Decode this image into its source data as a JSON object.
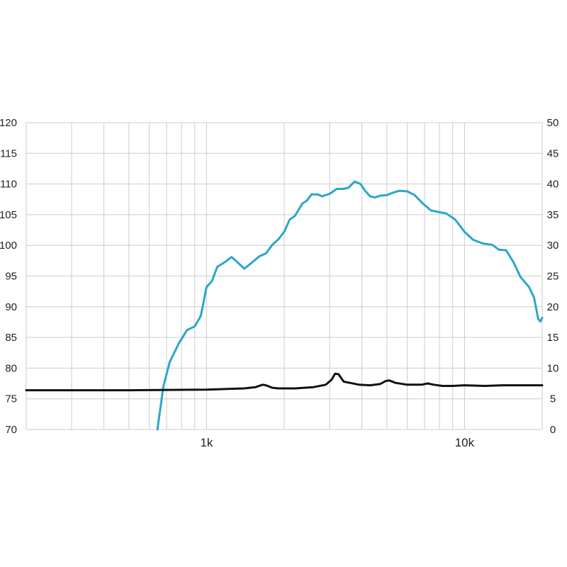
{
  "chart_data": {
    "type": "line",
    "x_scale": "log",
    "x_range": [
      200,
      20000
    ],
    "x_tick_labels": [
      {
        "x": 1000,
        "label": "1k"
      },
      {
        "x": 10000,
        "label": "10k"
      }
    ],
    "x_gridlines": [
      300,
      400,
      500,
      600,
      700,
      800,
      900,
      1000,
      2000,
      3000,
      4000,
      5000,
      6000,
      7000,
      8000,
      9000,
      10000
    ],
    "y_left": {
      "range": [
        70,
        120
      ],
      "ticks": [
        70,
        75,
        80,
        85,
        90,
        95,
        100,
        105,
        110,
        115,
        120
      ]
    },
    "y_right": {
      "range": [
        0,
        50
      ],
      "ticks": [
        0,
        5,
        10,
        15,
        20,
        25,
        30,
        35,
        40,
        45,
        50
      ]
    },
    "grid": true,
    "series": [
      {
        "axis": "left",
        "color": "#2aa7c9",
        "points": [
          [
            645,
            70
          ],
          [
            680,
            77
          ],
          [
            720,
            81
          ],
          [
            780,
            84
          ],
          [
            840,
            86.2
          ],
          [
            900,
            86.8
          ],
          [
            950,
            88.5
          ],
          [
            1000,
            93.2
          ],
          [
            1050,
            94.2
          ],
          [
            1100,
            96.5
          ],
          [
            1180,
            97.3
          ],
          [
            1250,
            98.1
          ],
          [
            1300,
            97.5
          ],
          [
            1400,
            96.2
          ],
          [
            1500,
            97.2
          ],
          [
            1600,
            98.2
          ],
          [
            1700,
            98.7
          ],
          [
            1800,
            100.1
          ],
          [
            1900,
            101.0
          ],
          [
            2000,
            102.2
          ],
          [
            2100,
            104.2
          ],
          [
            2200,
            104.8
          ],
          [
            2350,
            106.8
          ],
          [
            2450,
            107.3
          ],
          [
            2550,
            108.3
          ],
          [
            2700,
            108.3
          ],
          [
            2800,
            108.0
          ],
          [
            3000,
            108.4
          ],
          [
            3200,
            109.2
          ],
          [
            3400,
            109.2
          ],
          [
            3550,
            109.4
          ],
          [
            3750,
            110.4
          ],
          [
            3950,
            110.0
          ],
          [
            4100,
            109.0
          ],
          [
            4300,
            108.0
          ],
          [
            4500,
            107.8
          ],
          [
            4700,
            108.1
          ],
          [
            5000,
            108.2
          ],
          [
            5300,
            108.6
          ],
          [
            5600,
            108.9
          ],
          [
            6000,
            108.8
          ],
          [
            6400,
            108.2
          ],
          [
            6900,
            106.8
          ],
          [
            7400,
            105.7
          ],
          [
            8000,
            105.4
          ],
          [
            8500,
            105.2
          ],
          [
            9200,
            104.2
          ],
          [
            10000,
            102.2
          ],
          [
            10800,
            100.9
          ],
          [
            11800,
            100.3
          ],
          [
            12800,
            100.1
          ],
          [
            13600,
            99.3
          ],
          [
            14500,
            99.2
          ],
          [
            15500,
            97.2
          ],
          [
            16500,
            94.8
          ],
          [
            17800,
            93.2
          ],
          [
            18600,
            91.5
          ],
          [
            19300,
            88.0
          ],
          [
            19700,
            87.6
          ],
          [
            20000,
            88.2
          ]
        ]
      },
      {
        "axis": "right",
        "color": "#111111",
        "points": [
          [
            200,
            6.4
          ],
          [
            500,
            6.4
          ],
          [
            1000,
            6.5
          ],
          [
            1400,
            6.7
          ],
          [
            1550,
            6.9
          ],
          [
            1650,
            7.3
          ],
          [
            1700,
            7.2
          ],
          [
            1800,
            6.8
          ],
          [
            1900,
            6.7
          ],
          [
            2200,
            6.7
          ],
          [
            2600,
            6.9
          ],
          [
            2900,
            7.3
          ],
          [
            3050,
            8.1
          ],
          [
            3150,
            9.1
          ],
          [
            3250,
            9.0
          ],
          [
            3400,
            7.8
          ],
          [
            3600,
            7.6
          ],
          [
            3900,
            7.3
          ],
          [
            4300,
            7.2
          ],
          [
            4700,
            7.4
          ],
          [
            4950,
            7.9
          ],
          [
            5100,
            8.0
          ],
          [
            5400,
            7.6
          ],
          [
            6000,
            7.3
          ],
          [
            6800,
            7.3
          ],
          [
            7200,
            7.5
          ],
          [
            7600,
            7.3
          ],
          [
            8200,
            7.1
          ],
          [
            9000,
            7.1
          ],
          [
            10000,
            7.2
          ],
          [
            12000,
            7.1
          ],
          [
            14000,
            7.2
          ],
          [
            17000,
            7.2
          ],
          [
            20000,
            7.2
          ]
        ]
      }
    ]
  }
}
